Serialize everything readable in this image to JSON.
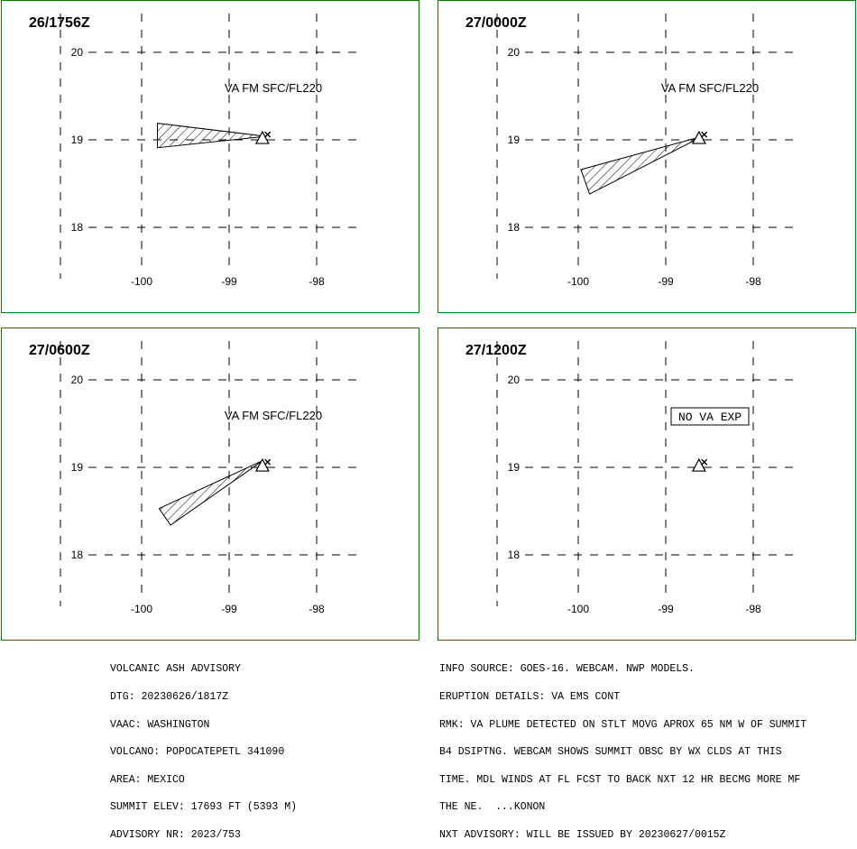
{
  "axis": {
    "lon_ticks": [
      -100,
      -99,
      -98
    ],
    "lat_ticks": [
      20,
      19,
      18
    ],
    "lon_labels": [
      "-100",
      "-99",
      "-98"
    ],
    "lat_labels": [
      "20",
      "19",
      "18"
    ]
  },
  "volcano": {
    "name": "POPOCATEPETL",
    "lon": -98.62,
    "lat": 19.02
  },
  "panels": [
    {
      "time": "26/1756Z",
      "label": "VA FM SFC/FL220",
      "ash_polygon": [
        [
          -98.58,
          19.04
        ],
        [
          -99.82,
          18.91
        ],
        [
          -99.82,
          19.19
        ],
        [
          -98.58,
          19.04
        ]
      ]
    },
    {
      "time": "27/0000Z",
      "label": "VA FM SFC/FL220",
      "ash_polygon": [
        [
          -98.58,
          19.04
        ],
        [
          -99.87,
          18.38
        ],
        [
          -99.97,
          18.66
        ],
        [
          -98.58,
          19.04
        ]
      ]
    },
    {
      "time": "27/0600Z",
      "label": "VA FM SFC/FL220",
      "ash_polygon": [
        [
          -98.61,
          19.08
        ],
        [
          -99.67,
          18.34
        ],
        [
          -99.8,
          18.53
        ],
        [
          -98.61,
          19.08
        ]
      ]
    },
    {
      "time": "27/1200Z",
      "label": "NO VA EXP",
      "ash_polygon": []
    }
  ],
  "advisory_left": [
    "VOLCANIC ASH ADVISORY",
    "DTG: 20230626/1817Z",
    "VAAC: WASHINGTON",
    "VOLCANO: POPOCATEPETL 341090",
    "AREA: MEXICO",
    "SUMMIT ELEV: 17693 FT (5393 M)",
    "ADVISORY NR: 2023/753"
  ],
  "advisory_right": [
    "INFO SOURCE: GOES-16. WEBCAM. NWP MODELS.",
    "ERUPTION DETAILS: VA EMS CONT",
    "RMK: VA PLUME DETECTED ON STLT MOVG APROX 65 NM W OF SUMMIT",
    "B4 DSIPTNG. WEBCAM SHOWS SUMMIT OBSC BY WX CLDS AT THIS",
    "TIME. MDL WINDS AT FL FCST TO BACK NXT 12 HR BECMG MORE MF",
    "THE NE.  ...KONON",
    "NXT ADVISORY: WILL BE ISSUED BY 20230627/0015Z"
  ],
  "colors": {
    "panel_border": "#008000",
    "lines": "#000000",
    "background": "#ffffff"
  }
}
